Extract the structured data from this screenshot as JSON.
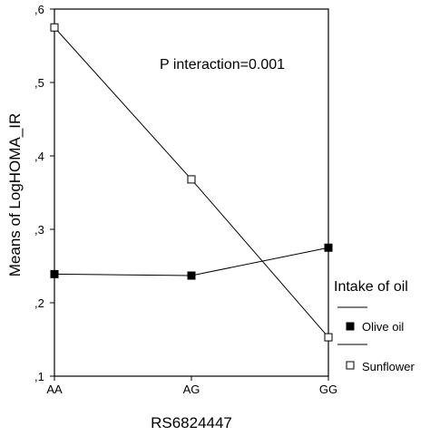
{
  "chart_data": {
    "type": "line",
    "title": "",
    "xlabel": "RS6824447",
    "ylabel": "Means of LogHOMA_IR",
    "categories": [
      "AA",
      "AG",
      "GG"
    ],
    "y_ticks": [
      {
        "value": 0.1,
        "label": ",1"
      },
      {
        "value": 0.2,
        "label": ",2"
      },
      {
        "value": 0.3,
        "label": ",3"
      },
      {
        "value": 0.4,
        "label": ",4"
      },
      {
        "value": 0.5,
        "label": ",5"
      },
      {
        "value": 0.6,
        "label": ",6"
      }
    ],
    "ylim": [
      0.1,
      0.6
    ],
    "grid": false,
    "annotation": "P interaction=0.001",
    "legend": {
      "title": "Intake of oil",
      "placement": "right"
    },
    "series": [
      {
        "name": "Olive oil",
        "marker": "filled-square",
        "values": [
          0.239,
          0.237,
          0.275
        ]
      },
      {
        "name": "Sunflower",
        "marker": "open-square",
        "values": [
          0.575,
          0.368,
          0.153
        ]
      }
    ]
  }
}
